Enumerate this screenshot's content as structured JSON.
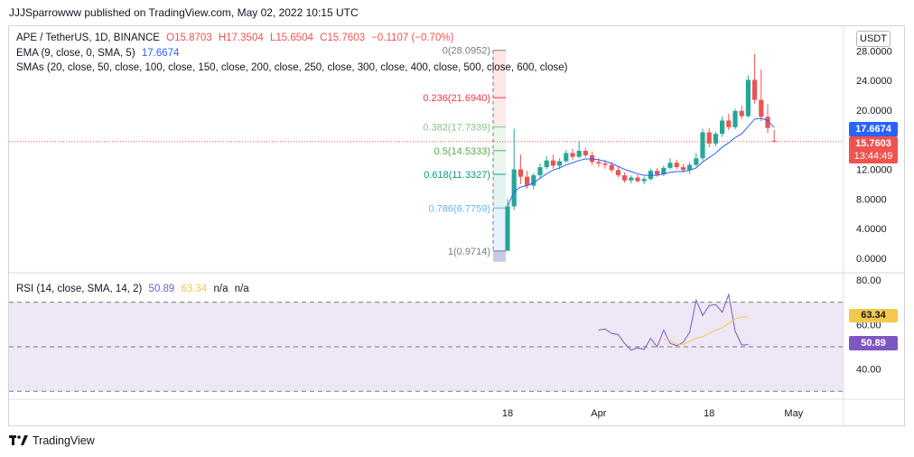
{
  "header": {
    "published": "JJJSparrowww published on TradingView.com, May 02, 2022 10:15 UTC"
  },
  "legend": {
    "symbol": "APE / TetherUS, 1D, BINANCE",
    "open": "O15.8703",
    "high": "H17.3504",
    "low": "L15.6504",
    "close": "C15.7603",
    "change": "−0.1107 (−0.70%)",
    "ema_label": "EMA (9, close, 0, SMA, 5)",
    "ema_value": "17.6674",
    "sma_label": "SMAs (20, close, 50, close, 100, close, 150, close, 200, close, 250, close, 300, close, 400, close, 500, close, 600, close)"
  },
  "rsi_legend": {
    "label": "RSI (14, close, SMA, 14, 2)",
    "rsi": "50.89",
    "sma": "63.34",
    "na1": "n/a",
    "na2": "n/a"
  },
  "price_axis": {
    "currency": "USDT",
    "last_price": "15.7603",
    "countdown": "13:44:49",
    "ema_price": "17.6674",
    "rsi_value": "50.89",
    "rsi_sma_value": "63.34"
  },
  "footer": {
    "brand": "TradingView"
  },
  "colors": {
    "up": "#26a69a",
    "down": "#ef5350",
    "ema": "#2962ff",
    "rsi": "#7e57c2",
    "rsi_sma": "#f2c94c",
    "rsi_band": "#ede7f6"
  },
  "chart_data": [
    {
      "type": "candlestick",
      "title": "APE / TetherUS, 1D, BINANCE",
      "ylim": [
        -0.8,
        29.5
      ],
      "y_ticks": [
        "28.0000",
        "24.0000",
        "20.0000",
        "16.0000",
        "12.0000",
        "8.0000",
        "4.0000",
        "0.0000"
      ],
      "y_tick_values": [
        28,
        24,
        20,
        16,
        12,
        8,
        4,
        0
      ],
      "x_ticks": [
        "18",
        "Apr",
        "18",
        "May"
      ],
      "x_tick_index": [
        0,
        14,
        31,
        44
      ],
      "candles": [
        {
          "o": 1.0,
          "h": 8.0,
          "l": 0.97,
          "c": 7.0
        },
        {
          "o": 7.0,
          "h": 17.5,
          "l": 6.5,
          "c": 12.0
        },
        {
          "o": 12.0,
          "h": 14.0,
          "l": 10.0,
          "c": 11.0
        },
        {
          "o": 11.0,
          "h": 11.8,
          "l": 9.4,
          "c": 9.8
        },
        {
          "o": 9.8,
          "h": 11.5,
          "l": 9.3,
          "c": 11.2
        },
        {
          "o": 11.2,
          "h": 12.8,
          "l": 10.8,
          "c": 12.3
        },
        {
          "o": 12.3,
          "h": 13.8,
          "l": 12.0,
          "c": 13.2
        },
        {
          "o": 13.2,
          "h": 14.0,
          "l": 12.1,
          "c": 12.5
        },
        {
          "o": 12.5,
          "h": 13.5,
          "l": 12.0,
          "c": 13.1
        },
        {
          "o": 13.1,
          "h": 14.6,
          "l": 12.9,
          "c": 14.2
        },
        {
          "o": 14.2,
          "h": 14.8,
          "l": 13.3,
          "c": 13.7
        },
        {
          "o": 13.7,
          "h": 15.8,
          "l": 13.5,
          "c": 14.5
        },
        {
          "o": 14.5,
          "h": 14.9,
          "l": 13.6,
          "c": 13.9
        },
        {
          "o": 13.9,
          "h": 14.4,
          "l": 12.6,
          "c": 13.0
        },
        {
          "o": 13.0,
          "h": 13.5,
          "l": 12.3,
          "c": 12.8
        },
        {
          "o": 12.8,
          "h": 13.3,
          "l": 12.1,
          "c": 12.6
        },
        {
          "o": 12.6,
          "h": 13.0,
          "l": 11.6,
          "c": 11.9
        },
        {
          "o": 11.9,
          "h": 12.4,
          "l": 10.9,
          "c": 11.2
        },
        {
          "o": 11.2,
          "h": 11.6,
          "l": 10.2,
          "c": 10.5
        },
        {
          "o": 10.5,
          "h": 11.2,
          "l": 10.1,
          "c": 10.9
        },
        {
          "o": 10.9,
          "h": 11.3,
          "l": 10.2,
          "c": 10.4
        },
        {
          "o": 10.4,
          "h": 11.0,
          "l": 10.0,
          "c": 10.7
        },
        {
          "o": 10.7,
          "h": 12.1,
          "l": 10.5,
          "c": 11.8
        },
        {
          "o": 11.8,
          "h": 12.2,
          "l": 11.0,
          "c": 11.3
        },
        {
          "o": 11.3,
          "h": 12.5,
          "l": 11.1,
          "c": 12.2
        },
        {
          "o": 12.2,
          "h": 13.5,
          "l": 12.0,
          "c": 12.9
        },
        {
          "o": 12.9,
          "h": 13.3,
          "l": 12.0,
          "c": 12.3
        },
        {
          "o": 12.3,
          "h": 12.7,
          "l": 11.6,
          "c": 11.9
        },
        {
          "o": 11.9,
          "h": 13.0,
          "l": 11.4,
          "c": 12.6
        },
        {
          "o": 12.6,
          "h": 14.2,
          "l": 12.4,
          "c": 13.5
        },
        {
          "o": 13.5,
          "h": 17.5,
          "l": 13.2,
          "c": 17.0
        },
        {
          "o": 17.0,
          "h": 17.6,
          "l": 15.0,
          "c": 15.5
        },
        {
          "o": 15.5,
          "h": 17.1,
          "l": 15.1,
          "c": 16.8
        },
        {
          "o": 16.8,
          "h": 19.1,
          "l": 16.4,
          "c": 18.6
        },
        {
          "o": 18.6,
          "h": 19.5,
          "l": 17.3,
          "c": 17.7
        },
        {
          "o": 17.7,
          "h": 20.2,
          "l": 17.4,
          "c": 19.9
        },
        {
          "o": 19.9,
          "h": 20.6,
          "l": 18.8,
          "c": 19.2
        },
        {
          "o": 19.2,
          "h": 24.7,
          "l": 19.0,
          "c": 24.1
        },
        {
          "o": 24.1,
          "h": 27.6,
          "l": 20.9,
          "c": 21.4
        },
        {
          "o": 21.4,
          "h": 25.5,
          "l": 18.5,
          "c": 19.1
        },
        {
          "o": 19.1,
          "h": 20.8,
          "l": 16.9,
          "c": 17.6
        },
        {
          "o": 15.87,
          "h": 17.35,
          "l": 15.65,
          "c": 15.76
        }
      ],
      "ema": [
        7.0,
        9.0,
        9.6,
        9.8,
        10.2,
        10.8,
        11.4,
        11.9,
        12.2,
        12.6,
        12.9,
        13.2,
        13.4,
        13.4,
        13.3,
        13.1,
        12.8,
        12.4,
        12.0,
        11.7,
        11.4,
        11.2,
        11.2,
        11.2,
        11.4,
        11.6,
        11.7,
        11.7,
        11.9,
        12.2,
        13.0,
        13.6,
        14.2,
        15.0,
        15.6,
        16.3,
        16.8,
        17.8,
        18.8,
        18.9,
        18.6,
        17.67
      ],
      "fibonacci": [
        {
          "label": "0(28.0952)",
          "level": 28.0952,
          "color": "#787b86"
        },
        {
          "label": "0.236(21.6940)",
          "level": 21.694,
          "color": "#f23645"
        },
        {
          "label": "0.382(17.7339)",
          "level": 17.7339,
          "color": "#81c784"
        },
        {
          "label": "0.5(14.5333)",
          "level": 14.5333,
          "color": "#4caf50"
        },
        {
          "label": "0.618(11.3327)",
          "level": 11.3327,
          "color": "#089981"
        },
        {
          "label": "0.786(6.7759)",
          "level": 6.7759,
          "color": "#64b5f6"
        },
        {
          "label": "1(0.9714)",
          "level": 0.9714,
          "color": "#787b86"
        }
      ]
    },
    {
      "type": "line",
      "title": "RSI (14, close, SMA, 14, 2)",
      "ylim": [
        30,
        80
      ],
      "y_ticks": [
        "80.00",
        "60.00",
        "40.00"
      ],
      "y_tick_values": [
        80,
        60,
        40
      ],
      "bands": [
        70,
        50,
        30
      ],
      "series": [
        {
          "name": "RSI",
          "start_index": 14,
          "values": [
            57.5,
            58.0,
            56.0,
            55.5,
            51.5,
            48.5,
            49.5,
            48.8,
            53.8,
            50.0,
            57.5,
            51.5,
            50.5,
            52.0,
            56.5,
            71.0,
            64.0,
            68.5,
            69.0,
            65.5,
            73.5,
            57.0,
            50.8,
            50.89
          ]
        },
        {
          "name": "RSI-based MA",
          "start_index": 24,
          "values": [
            53.5,
            52.8,
            51.2,
            51.0,
            52.5,
            53.8,
            54.5,
            56.0,
            57.5,
            58.5,
            60.5,
            62.5,
            63.3,
            63.34
          ]
        }
      ]
    }
  ]
}
